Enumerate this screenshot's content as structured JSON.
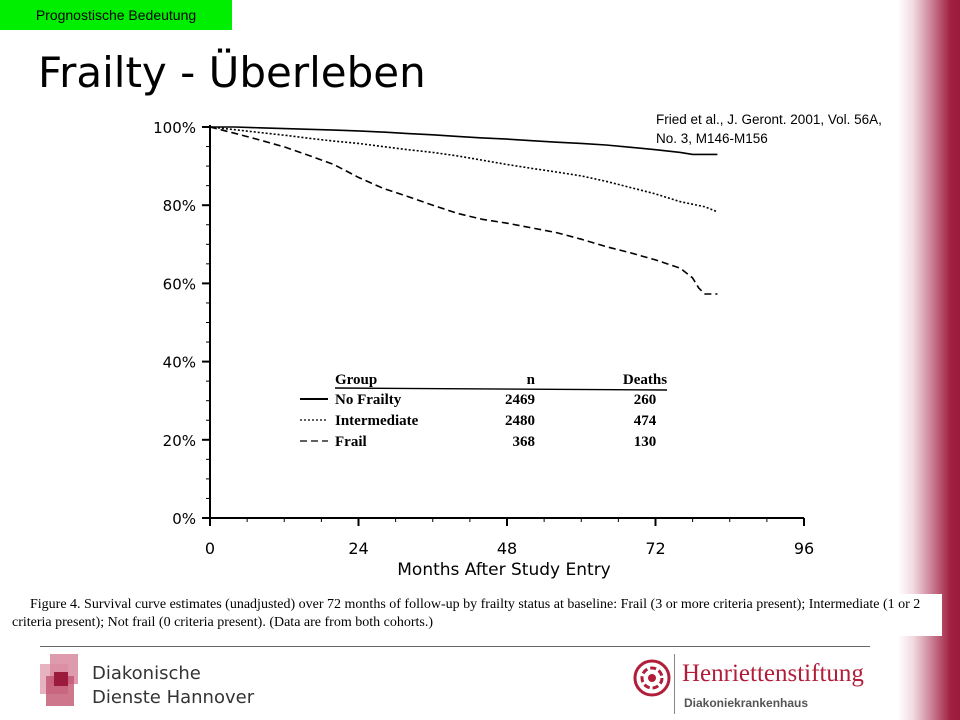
{
  "header": {
    "tag": "Prognostische Bedeutung",
    "title": "Frailty - Überleben"
  },
  "citation": "Fried et al., J. Geront. 2001, Vol. 56A, No. 3, M146-M156",
  "colors": {
    "tag_bg": "#00ee00",
    "brand_red": "#b01e3a",
    "band_red": "#9a1b3b"
  },
  "chart_data": {
    "type": "line",
    "xlabel": "Months After Study Entry",
    "ylabel": "",
    "x_ticks": [
      "0",
      "24",
      "48",
      "72",
      "96"
    ],
    "y_ticks": [
      "0%",
      "20%",
      "40%",
      "60%",
      "80%",
      "100%"
    ],
    "xlim": [
      0,
      96
    ],
    "ylim": [
      0,
      100
    ],
    "legend": {
      "position": "center",
      "headers": {
        "group": "Group",
        "n": "n",
        "deaths": "Deaths"
      },
      "rows": [
        {
          "group": "No Frailty",
          "n": "2469",
          "deaths": "260",
          "style": "solid"
        },
        {
          "group": "Intermediate",
          "n": "2480",
          "deaths": "474",
          "style": "dotted"
        },
        {
          "group": "Frail",
          "n": "368",
          "deaths": "130",
          "style": "dashed"
        }
      ]
    },
    "series": [
      {
        "name": "No Frailty",
        "style": "solid",
        "x": [
          0,
          4,
          8,
          12,
          16,
          20,
          24,
          28,
          32,
          36,
          40,
          44,
          48,
          52,
          56,
          60,
          64,
          68,
          72,
          76,
          78,
          80,
          82
        ],
        "y": [
          100,
          100,
          99.8,
          99.6,
          99.4,
          99.2,
          99,
          98.7,
          98.3,
          98,
          97.6,
          97.2,
          96.9,
          96.5,
          96.1,
          95.8,
          95.4,
          94.8,
          94.2,
          93.5,
          93,
          93,
          93
        ]
      },
      {
        "name": "Intermediate",
        "style": "dotted",
        "x": [
          0,
          4,
          8,
          12,
          16,
          20,
          24,
          28,
          32,
          36,
          40,
          44,
          48,
          52,
          56,
          60,
          64,
          68,
          72,
          76,
          80,
          82
        ],
        "y": [
          100,
          99.3,
          98.6,
          97.9,
          97.1,
          96.4,
          95.8,
          95,
          94.2,
          93.5,
          92.6,
          91.5,
          90.4,
          89.4,
          88.5,
          87.5,
          86.1,
          84.5,
          82.9,
          80.9,
          79.6,
          78.3
        ]
      },
      {
        "name": "Frail",
        "style": "dashed",
        "x": [
          0,
          4,
          8,
          12,
          16,
          20,
          24,
          28,
          32,
          36,
          40,
          44,
          48,
          52,
          56,
          60,
          64,
          68,
          72,
          76,
          78,
          79,
          80,
          82
        ],
        "y": [
          100,
          98.4,
          96.7,
          94.9,
          92.7,
          90.4,
          87.1,
          84.3,
          82.2,
          80,
          77.9,
          76.4,
          75.4,
          74.2,
          73,
          71.3,
          69.4,
          67.8,
          66,
          63.9,
          61.4,
          58.8,
          57.3,
          57.3
        ]
      }
    ],
    "caption": "Figure 4. Survival curve estimates (unadjusted) over 72 months of follow-up by frailty status at baseline: Frail (3 or more criteria present); Intermediate (1 or 2 criteria present); Not frail (0 criteria present). (Data are from both cohorts.)"
  },
  "logos": {
    "left": {
      "line1": "Diakonische",
      "line2": "Dienste Hannover"
    },
    "right": {
      "name": "Henriettenstiftung",
      "sub": "Diakoniekrankenhaus"
    }
  }
}
